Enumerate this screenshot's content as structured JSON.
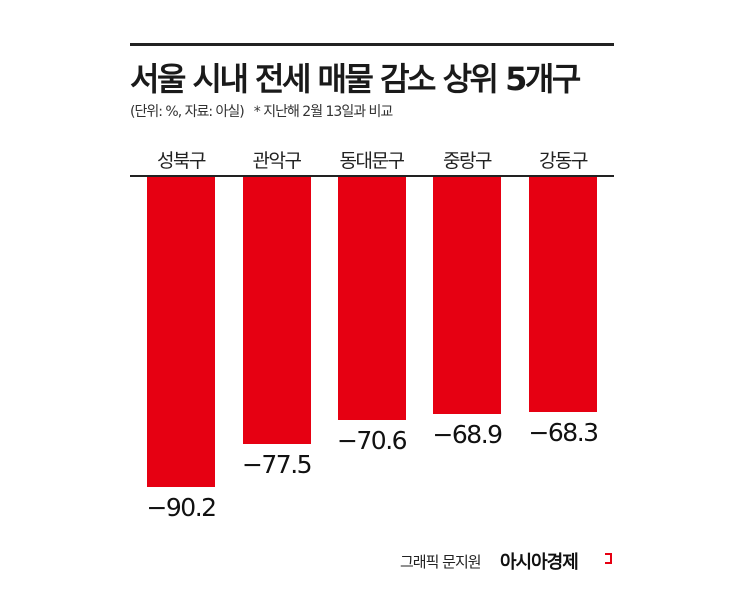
{
  "header": {
    "title": "서울 시내 전세 매물 감소 상위 5개구",
    "unit_source": "(단위: %, 자료: 아실)",
    "note": "* 지난해 2월 13일과 비교"
  },
  "footer": {
    "credit": "그래픽 문지원",
    "brand": "아시아경제"
  },
  "colors": {
    "bar": "#e60012",
    "text": "#222222",
    "rule": "#222222",
    "background": "#ffffff"
  },
  "chart_data": {
    "type": "bar",
    "orientation": "vertical-downward",
    "title": "서울 시내 전세 매물 감소 상위 5개구",
    "subtitle": "(단위: %, 자료: 아실) * 지난해 2월 13일과 비교",
    "categories": [
      "성북구",
      "관악구",
      "동대문구",
      "중랑구",
      "강동구"
    ],
    "values": [
      -90.2,
      -77.5,
      -70.6,
      -68.9,
      -68.3
    ],
    "labels": [
      "−90.2",
      "−77.5",
      "−70.6",
      "−68.9",
      "−68.3"
    ],
    "xlabel": "",
    "ylabel": "%",
    "ylim": [
      -100,
      0
    ],
    "grid": false,
    "legend": "none",
    "source": "아실"
  }
}
